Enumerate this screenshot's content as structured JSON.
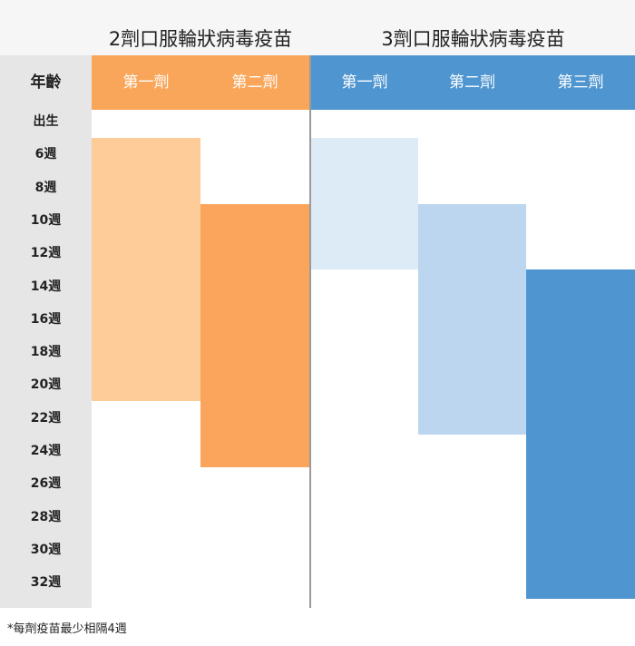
{
  "titles": {
    "two_dose": "2劑口服輪狀病毒疫苗",
    "three_dose": "3劑口服輪狀病毒疫苗"
  },
  "age_header": "年齡",
  "footnote": "*每劑疫苗最少相隔4週",
  "colors": {
    "orange_header": "#f9a65a",
    "orange_light": "#fecc98",
    "orange_dark": "#fba55c",
    "blue_header": "#4f95d0",
    "blue_light": "#ddebf6",
    "blue_mid": "#bbd6ee",
    "blue_dark": "#4f95d0"
  },
  "chart_data": {
    "type": "bar",
    "title": "",
    "xlabel": "",
    "ylabel": "年齡",
    "age_labels": [
      "出生",
      "6週",
      "8週",
      "10週",
      "12週",
      "14週",
      "16週",
      "18週",
      "20週",
      "22週",
      "24週",
      "26週",
      "28週",
      "30週",
      "32週"
    ],
    "groups": [
      {
        "title": "2劑口服輪狀病毒疫苗",
        "header_color": "#f9a65a",
        "doses": [
          {
            "label": "第一劑",
            "start_week": 6,
            "end_week": 20,
            "color": "#fecc98"
          },
          {
            "label": "第二劑",
            "start_week": 10,
            "end_week": 24,
            "color": "#fba55c"
          }
        ]
      },
      {
        "title": "3劑口服輪狀病毒疫苗",
        "header_color": "#4f95d0",
        "doses": [
          {
            "label": "第一劑",
            "start_week": 6,
            "end_week": 12,
            "color": "#ddebf6"
          },
          {
            "label": "第二劑",
            "start_week": 10,
            "end_week": 22,
            "color": "#bbd6ee"
          },
          {
            "label": "第三劑",
            "start_week": 14,
            "end_week": 32,
            "color": "#4f95d0"
          }
        ]
      }
    ]
  }
}
